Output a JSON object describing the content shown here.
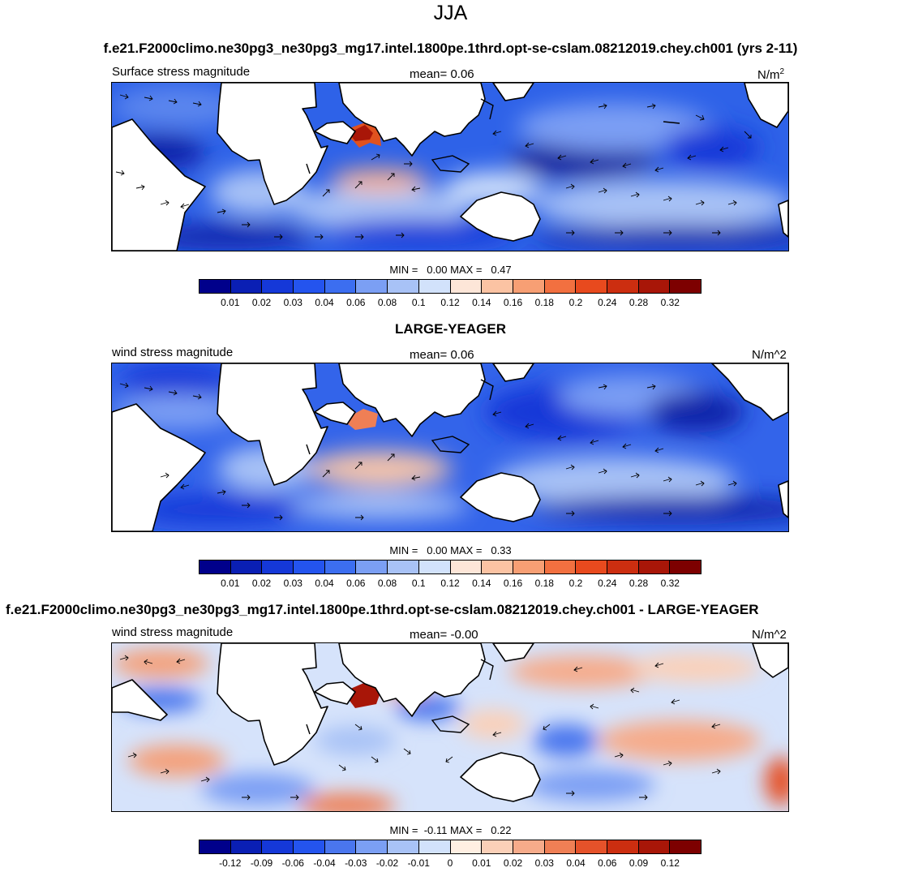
{
  "season": "JJA",
  "palette_pos": [
    "#00008b",
    "#0a1fb4",
    "#1538d8",
    "#2454ee",
    "#3c6ef0",
    "#7b9ff4",
    "#a8c2f6",
    "#d2e2fb",
    "#fde6d8",
    "#fbc3a3",
    "#f79f74",
    "#f27040",
    "#e84a1e",
    "#cc2e10",
    "#a81608",
    "#7d0000"
  ],
  "palette_diff": [
    "#00008b",
    "#0a1fb4",
    "#1538d8",
    "#2454ee",
    "#4a76ee",
    "#7b9ff4",
    "#a8c2f6",
    "#d2e2fb",
    "#ffefe2",
    "#fbd0b8",
    "#f6ab8a",
    "#ef7f55",
    "#e5522a",
    "#cc2e10",
    "#a81608",
    "#7d0000"
  ],
  "panels": [
    {
      "title": "f.e21.F2000climo.ne30pg3_ne30pg3_mg17.intel.1800pe.1thrd.opt-se-cslam.08212019.chey.ch001 (yrs 2-11)",
      "left_label": "Surface stress magnitude",
      "mean_label": "mean=   0.06",
      "units_base": "N/m",
      "units_sup": "2",
      "minmax": "MIN =   0.00 MAX =   0.47",
      "ticks": [
        "0.01",
        "0.02",
        "0.03",
        "0.04",
        "0.06",
        "0.08",
        "0.1",
        "0.12",
        "0.14",
        "0.16",
        "0.18",
        "0.2",
        "0.24",
        "0.28",
        "0.32"
      ]
    },
    {
      "title": "LARGE-YEAGER",
      "left_label": "wind stress magnitude",
      "mean_label": "mean=   0.06",
      "units": "N/m^2",
      "minmax": "MIN =   0.00 MAX =   0.33",
      "ticks": [
        "0.01",
        "0.02",
        "0.03",
        "0.04",
        "0.06",
        "0.08",
        "0.1",
        "0.12",
        "0.14",
        "0.16",
        "0.18",
        "0.2",
        "0.24",
        "0.28",
        "0.32"
      ]
    },
    {
      "title": "f.e21.F2000climo.ne30pg3_ne30pg3_mg17.intel.1800pe.1thrd.opt-se-cslam.08212019.chey.ch001 - LARGE-YEAGER",
      "left_label": "wind stress magnitude",
      "mean_label": "mean=  -0.00",
      "units": "N/m^2",
      "minmax": "MIN =  -0.11 MAX =   0.22",
      "ticks": [
        "-0.12",
        "-0.09",
        "-0.06",
        "-0.04",
        "-0.03",
        "-0.02",
        "-0.01",
        "0",
        "0.01",
        "0.02",
        "0.03",
        "0.04",
        "0.06",
        "0.09",
        "0.12"
      ]
    }
  ]
}
